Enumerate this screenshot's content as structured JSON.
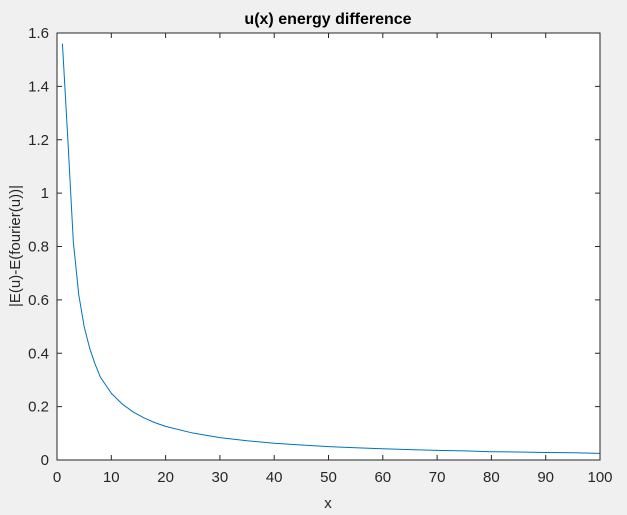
{
  "chart_data": {
    "type": "line",
    "title": "u(x) energy difference",
    "xlabel": "x",
    "ylabel": "|E(u)-E(fourier(u))|",
    "xlim": [
      0,
      100
    ],
    "ylim": [
      0,
      1.6
    ],
    "x_ticks": [
      "0",
      "10",
      "20",
      "30",
      "40",
      "50",
      "60",
      "70",
      "80",
      "90",
      "100"
    ],
    "y_ticks": [
      "0",
      "0.2",
      "0.4",
      "0.6",
      "0.8",
      "1",
      "1.2",
      "1.4",
      "1.6"
    ],
    "x_tick_values": [
      0,
      10,
      20,
      30,
      40,
      50,
      60,
      70,
      80,
      90,
      100
    ],
    "y_tick_values": [
      0,
      0.2,
      0.4,
      0.6,
      0.8,
      1.0,
      1.2,
      1.4,
      1.6
    ],
    "grid": false,
    "box": true,
    "series": [
      {
        "color": "#0072bd",
        "x": [
          1,
          2,
          3,
          4,
          5,
          6,
          7,
          8,
          9,
          10,
          12,
          14,
          16,
          18,
          20,
          25,
          30,
          35,
          40,
          45,
          50,
          55,
          60,
          65,
          70,
          75,
          80,
          85,
          90,
          95,
          100
        ],
        "y": [
          1.56,
          1.2,
          0.82,
          0.62,
          0.5,
          0.42,
          0.36,
          0.31,
          0.28,
          0.25,
          0.21,
          0.18,
          0.158,
          0.14,
          0.126,
          0.101,
          0.084,
          0.072,
          0.063,
          0.056,
          0.05,
          0.046,
          0.042,
          0.039,
          0.036,
          0.034,
          0.031,
          0.03,
          0.028,
          0.027,
          0.025
        ]
      }
    ]
  },
  "colors": {
    "background": "#f0f0f0",
    "axes_background": "#ffffff",
    "axis_line": "#262626",
    "series": "#0072bd"
  }
}
